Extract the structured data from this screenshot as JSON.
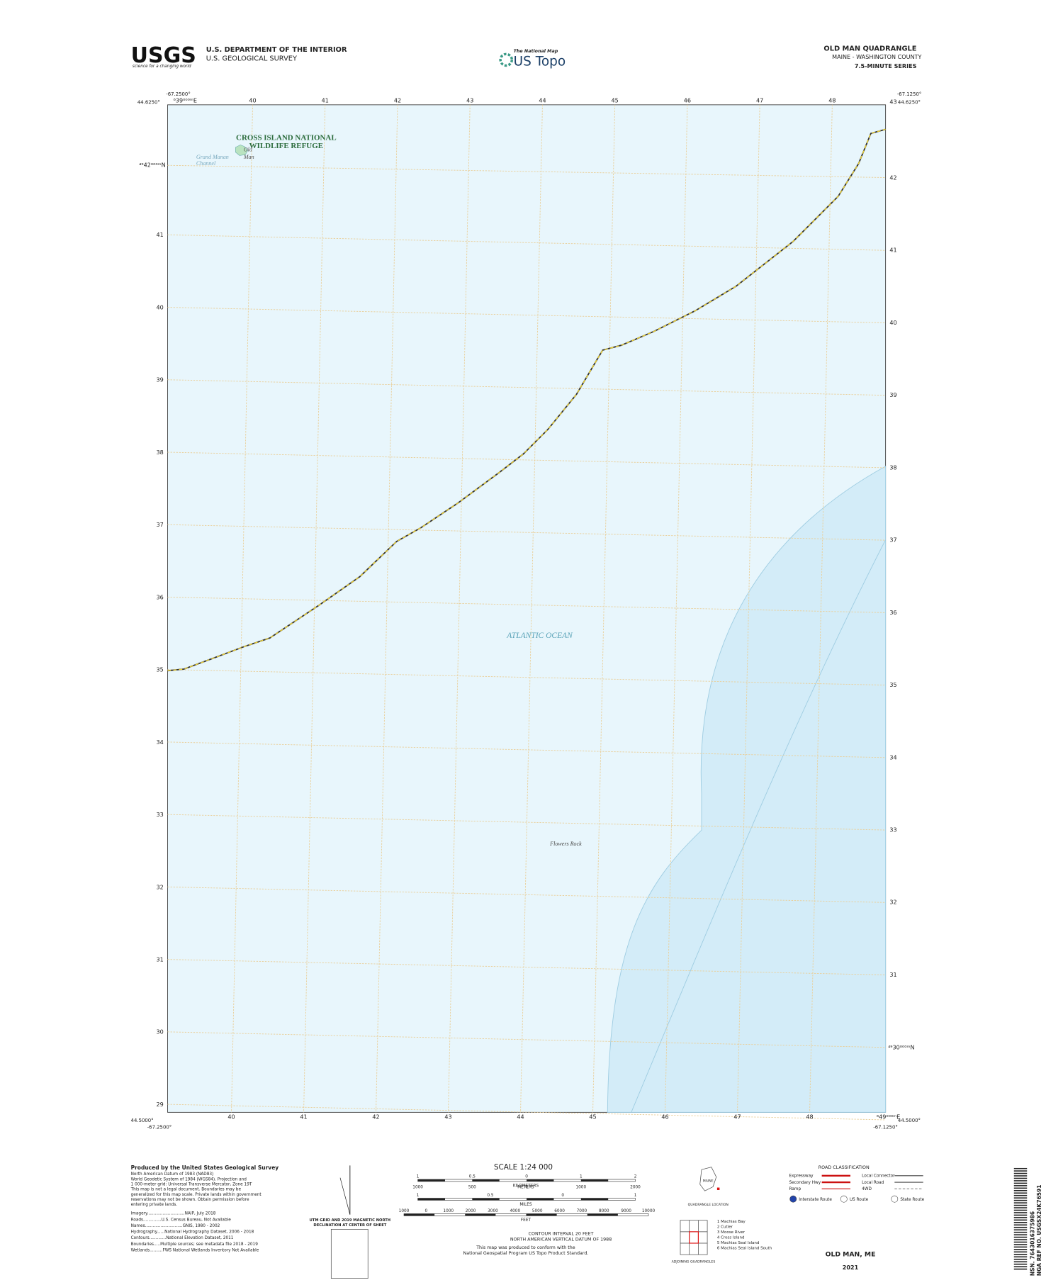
{
  "header": {
    "logo": "USGS",
    "tagline": "science for a changing world",
    "agency1": "U.S. DEPARTMENT OF THE INTERIOR",
    "agency2": "U.S. GEOLOGICAL SURVEY",
    "national_map": "The National Map",
    "us_topo": "US Topo",
    "quad_title": "OLD MAN QUADRANGLE",
    "quad_subtitle": "MAINE - WASHINGTON COUNTY",
    "series": "7.5-MINUTE SERIES"
  },
  "map": {
    "corners": {
      "top_left_lon": "-67.2500°",
      "top_left_lat": "44.6250°",
      "top_right_lon": "-67.1250°",
      "top_right_lat": "44.6250°",
      "bottom_left_lat": "44.5000°",
      "bottom_left_lon": "-67.2500°",
      "bottom_right_lat": "44.5000°",
      "bottom_right_lon": "-67.1250°"
    },
    "grid_labels": {
      "top_first": "⁶39⁰⁰⁰ᵐE",
      "top_last": "43",
      "left_first": "⁴⁹42⁰⁰⁰ᵐN",
      "right_last": "⁴⁹30⁰⁰⁰ᵐN",
      "bottom_last": "⁶49⁰⁰⁰ᵐE"
    },
    "eastings_top": [
      40,
      41,
      42,
      43,
      44,
      45,
      46,
      47,
      48
    ],
    "eastings_bottom": [
      40,
      41,
      42,
      43,
      44,
      45,
      46,
      47,
      48
    ],
    "northings_left": [
      41,
      40,
      39,
      38,
      37,
      36,
      35,
      34,
      33,
      32,
      31,
      30,
      29
    ],
    "northings_right": [
      42,
      41,
      40,
      39,
      38,
      37,
      36,
      35,
      34,
      33,
      32,
      31
    ],
    "labels": {
      "refuge1": "CROSS ISLAND NATIONAL",
      "refuge2": "WILDLIFE REFUGE",
      "old": "Old",
      "man": "Man",
      "channel1": "Grand Manan",
      "channel2": "Channel",
      "ocean": "ATLANTIC OCEAN",
      "rock": "Flowers Rock"
    }
  },
  "footer": {
    "producer": "Produced by the United States Geological Survey",
    "notes": [
      "North American Datum of 1983 (NAD83)",
      "World Geodetic System of 1984 (WGS84). Projection and",
      "1 000-meter grid: Universal Transverse Mercator, Zone 19T",
      "This map is not a legal document. Boundaries may be",
      "generalized for this map scale. Private lands within government",
      "reservations may not be shown. Obtain permission before",
      "entering private lands."
    ],
    "credits": [
      "Imagery.............................NAIP, July 2018",
      "Roads..............U.S. Census Bureau, Not Available",
      "Names.............................GNIS, 1980 - 2002",
      "Hydrography......National Hydrography Dataset, 2006 - 2018",
      "Contours.............National Elevation Dataset, 2011",
      "Boundaries.....Multiple sources; see metadata file 2018 - 2019",
      "Wetlands..........FWS National Wetlands Inventory Not Available"
    ],
    "declination": [
      "UTM GRID AND 2019 MAGNETIC NORTH",
      "DECLINATION AT CENTER OF SHEET"
    ],
    "scale": "SCALE 1:24 000",
    "units": [
      "KILOMETERS",
      "METERS",
      "MILES",
      "FEET"
    ],
    "km_ticks": [
      "1",
      "0.5",
      "0",
      "1",
      "2"
    ],
    "m_ticks": [
      "1000",
      "500",
      "0",
      "1000",
      "2000"
    ],
    "mi_ticks": [
      "1",
      "0.5",
      "0",
      "1"
    ],
    "ft_ticks": [
      "1000",
      "0",
      "1000",
      "2000",
      "3000",
      "4000",
      "5000",
      "6000",
      "7000",
      "8000",
      "9000",
      "10000"
    ],
    "contour": [
      "CONTOUR INTERVAL 20 FEET",
      "NORTH AMERICAN VERTICAL DATUM OF 1988"
    ],
    "standard": [
      "This map was produced to conform with the",
      "National Geospatial Program US Topo Product Standard."
    ],
    "state": "MAINE",
    "location": "QUADRANGLE LOCATION",
    "adjoining": "ADJOINING QUADRANGLES",
    "quads": [
      "1 Machias Bay",
      "2 Cutler",
      "3 Moose River",
      "4 Cross Island",
      "5 Machias Seal Island",
      "6 Machias Seal Island South"
    ],
    "road_title": "ROAD CLASSIFICATION",
    "roads": [
      "Expressway",
      "Secondary Hwy",
      "Ramp",
      "Local Connector",
      "Local Road",
      "4WD"
    ],
    "routes": [
      "Interstate Route",
      "US Route",
      "State Route"
    ],
    "name": "OLD MAN,  ME",
    "year": "2021",
    "nsn": "NSN. 7643016375986",
    "nga": "NGA REF NO. USGSX24K76591"
  }
}
